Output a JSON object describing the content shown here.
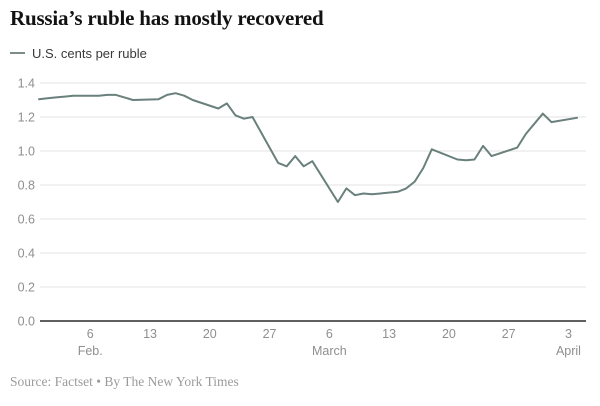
{
  "header": {
    "title": "Russia’s ruble has mostly recovered",
    "legend": {
      "label": "U.S. cents per ruble"
    }
  },
  "footer": {
    "text": "Source: Factset • By The New York Times"
  },
  "theme": {
    "line_color": "#69807c",
    "legend_swatch_color": "#7d8c89",
    "grid_color": "#e3e3e3",
    "axis_color": "#2b2b2b",
    "tick_text_color": "#8f8f8f",
    "title_color": "#121212",
    "footer_color": "#9b9b9b"
  },
  "chart_data": {
    "type": "line",
    "title": "Russia’s ruble has mostly recovered",
    "series_name": "U.S. cents per ruble",
    "ylabel": "U.S. cents per ruble",
    "xlabel": "",
    "ylim": [
      0,
      1.4
    ],
    "grid": true,
    "legend_position": "top-left",
    "y_ticks": [
      {
        "value": 0.0,
        "label": "0.0"
      },
      {
        "value": 0.2,
        "label": "0.2"
      },
      {
        "value": 0.4,
        "label": "0.4"
      },
      {
        "value": 0.6,
        "label": "0.6"
      },
      {
        "value": 0.8,
        "label": "0.8"
      },
      {
        "value": 1.0,
        "label": "1.0"
      },
      {
        "value": 1.2,
        "label": "1.2"
      },
      {
        "value": 1.4,
        "label": "1.4"
      }
    ],
    "x_ticks": [
      {
        "day": 6,
        "label": "6",
        "month": "Feb."
      },
      {
        "day": 13,
        "label": "13"
      },
      {
        "day": 20,
        "label": "20"
      },
      {
        "day": 27,
        "label": "27"
      },
      {
        "day": 34,
        "label": "6",
        "month": "March"
      },
      {
        "day": 41,
        "label": "13"
      },
      {
        "day": 48,
        "label": "20"
      },
      {
        "day": 55,
        "label": "27"
      },
      {
        "day": 62,
        "label": "3",
        "month": "April"
      }
    ],
    "points": [
      {
        "date": "Jan. 31",
        "day": 0,
        "value": 1.305
      },
      {
        "date": "Feb. 1",
        "day": 1,
        "value": 1.31
      },
      {
        "date": "Feb. 2",
        "day": 2,
        "value": 1.315
      },
      {
        "date": "Feb. 3",
        "day": 3,
        "value": 1.32
      },
      {
        "date": "Feb. 4",
        "day": 4,
        "value": 1.325
      },
      {
        "date": "Feb. 7",
        "day": 7,
        "value": 1.325
      },
      {
        "date": "Feb. 8",
        "day": 8,
        "value": 1.33
      },
      {
        "date": "Feb. 9",
        "day": 9,
        "value": 1.33
      },
      {
        "date": "Feb. 10",
        "day": 10,
        "value": 1.315
      },
      {
        "date": "Feb. 11",
        "day": 11,
        "value": 1.3
      },
      {
        "date": "Feb. 14",
        "day": 14,
        "value": 1.305
      },
      {
        "date": "Feb. 15",
        "day": 15,
        "value": 1.33
      },
      {
        "date": "Feb. 16",
        "day": 16,
        "value": 1.34
      },
      {
        "date": "Feb. 17",
        "day": 17,
        "value": 1.325
      },
      {
        "date": "Feb. 18",
        "day": 18,
        "value": 1.3
      },
      {
        "date": "Feb. 21",
        "day": 21,
        "value": 1.25
      },
      {
        "date": "Feb. 22",
        "day": 22,
        "value": 1.28
      },
      {
        "date": "Feb. 23",
        "day": 23,
        "value": 1.21
      },
      {
        "date": "Feb. 24",
        "day": 24,
        "value": 1.19
      },
      {
        "date": "Feb. 25",
        "day": 25,
        "value": 1.2
      },
      {
        "date": "Feb. 28",
        "day": 28,
        "value": 0.93
      },
      {
        "date": "March 1",
        "day": 29,
        "value": 0.91
      },
      {
        "date": "March 2",
        "day": 30,
        "value": 0.97
      },
      {
        "date": "March 3",
        "day": 31,
        "value": 0.91
      },
      {
        "date": "March 4",
        "day": 32,
        "value": 0.94
      },
      {
        "date": "March 7",
        "day": 35,
        "value": 0.7
      },
      {
        "date": "March 8",
        "day": 36,
        "value": 0.78
      },
      {
        "date": "March 9",
        "day": 37,
        "value": 0.74
      },
      {
        "date": "March 10",
        "day": 38,
        "value": 0.75
      },
      {
        "date": "March 11",
        "day": 39,
        "value": 0.745
      },
      {
        "date": "March 14",
        "day": 42,
        "value": 0.76
      },
      {
        "date": "March 15",
        "day": 43,
        "value": 0.78
      },
      {
        "date": "March 16",
        "day": 44,
        "value": 0.82
      },
      {
        "date": "March 17",
        "day": 45,
        "value": 0.9
      },
      {
        "date": "March 18",
        "day": 46,
        "value": 1.01
      },
      {
        "date": "March 21",
        "day": 49,
        "value": 0.95
      },
      {
        "date": "March 22",
        "day": 50,
        "value": 0.945
      },
      {
        "date": "March 23",
        "day": 51,
        "value": 0.95
      },
      {
        "date": "March 24",
        "day": 52,
        "value": 1.03
      },
      {
        "date": "March 25",
        "day": 53,
        "value": 0.97
      },
      {
        "date": "March 28",
        "day": 56,
        "value": 1.02
      },
      {
        "date": "March 29",
        "day": 57,
        "value": 1.1
      },
      {
        "date": "March 30",
        "day": 58,
        "value": 1.16
      },
      {
        "date": "March 31",
        "day": 59,
        "value": 1.22
      },
      {
        "date": "April 1",
        "day": 60,
        "value": 1.17
      },
      {
        "date": "April 4",
        "day": 63,
        "value": 1.195
      }
    ]
  }
}
